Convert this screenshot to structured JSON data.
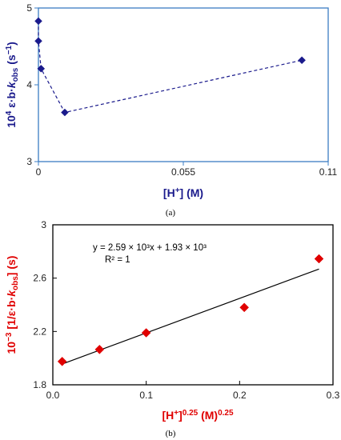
{
  "chart_data": [
    {
      "id": "a",
      "type": "scatter",
      "panel_label": "(a)",
      "xlabel": "[H⁺] (M)",
      "ylabel": "10⁴ ε·b·kobs (s⁻¹)",
      "xlim": [
        0,
        0.11
      ],
      "ylim": [
        3,
        5
      ],
      "xticks": [
        "0",
        "0.055",
        "0.11"
      ],
      "yticks": [
        "3",
        "4",
        "5"
      ],
      "grid": false,
      "connector": "dashed",
      "marker": "diamond",
      "color": "#1a1a8c",
      "series": [
        {
          "x": [
            0,
            0,
            0.001,
            0.01,
            0.1
          ],
          "y": [
            4.83,
            4.57,
            4.21,
            3.64,
            4.32
          ]
        }
      ]
    },
    {
      "id": "b",
      "type": "scatter",
      "panel_label": "(b)",
      "xlabel": "[H⁺]^0.25 (M)^0.25",
      "ylabel": "10⁻³ [1/ε·b·kobs] (s)",
      "xlim": [
        0,
        0.3
      ],
      "ylim": [
        1.8,
        3
      ],
      "xticks": [
        "0.0",
        "0.1",
        "0.2",
        "0.3"
      ],
      "yticks": [
        "1.8",
        "2.2",
        "2.6",
        "3"
      ],
      "grid": false,
      "marker": "diamond",
      "color": "#e00000",
      "annotation": [
        "y = 2.59 × 10³x + 1.93 × 10³",
        "R² = 1"
      ],
      "trendline": {
        "slope": 2.59,
        "intercept": 1.93
      },
      "series": [
        {
          "x": [
            0.01,
            0.05,
            0.1,
            0.205,
            0.285
          ],
          "y": [
            1.975,
            2.065,
            2.19,
            2.38,
            2.745
          ]
        }
      ]
    }
  ]
}
